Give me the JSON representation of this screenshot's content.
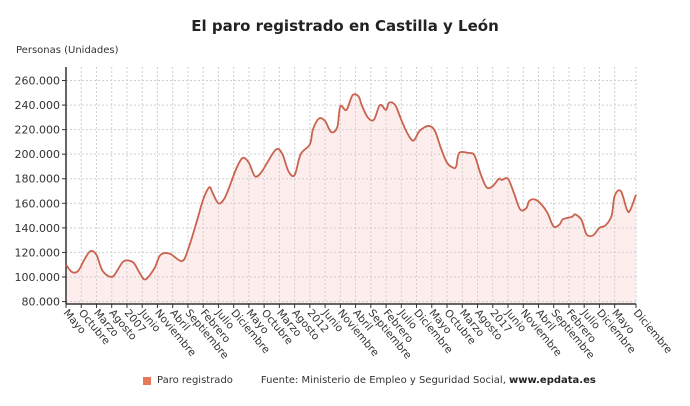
{
  "chart_data": {
    "type": "area",
    "title": "El paro registrado en Castilla y León",
    "ylabel": "Personas (Unidades)",
    "xlabel": "",
    "ylim": [
      78000,
      271000
    ],
    "y_ticks": [
      80000,
      100000,
      120000,
      140000,
      160000,
      180000,
      200000,
      220000,
      240000,
      260000
    ],
    "y_tick_labels": [
      "80.000",
      "100.000",
      "120.000",
      "140.000",
      "160.000",
      "180.000",
      "200.000",
      "220.000",
      "240.000",
      "260.000"
    ],
    "x_ticks": [
      {
        "date": "2005-05",
        "label": "Mayo"
      },
      {
        "date": "2005-10",
        "label": "Octubre"
      },
      {
        "date": "2006-03",
        "label": "Marzo"
      },
      {
        "date": "2006-08",
        "label": "Agosto"
      },
      {
        "date": "2007-01",
        "label": "2007"
      },
      {
        "date": "2007-06",
        "label": "Junio"
      },
      {
        "date": "2007-11",
        "label": "Noviembre"
      },
      {
        "date": "2008-04",
        "label": "Abril"
      },
      {
        "date": "2008-09",
        "label": "Septiembre"
      },
      {
        "date": "2009-02",
        "label": "Febrero"
      },
      {
        "date": "2009-07",
        "label": "Julio"
      },
      {
        "date": "2009-12",
        "label": "Diciembre"
      },
      {
        "date": "2010-05",
        "label": "Mayo"
      },
      {
        "date": "2010-10",
        "label": "Octubre"
      },
      {
        "date": "2011-03",
        "label": "Marzo"
      },
      {
        "date": "2011-08",
        "label": "Agosto"
      },
      {
        "date": "2012-01",
        "label": "2012"
      },
      {
        "date": "2012-06",
        "label": "Junio"
      },
      {
        "date": "2012-11",
        "label": "Noviembre"
      },
      {
        "date": "2013-04",
        "label": "Abril"
      },
      {
        "date": "2013-09",
        "label": "Septiembre"
      },
      {
        "date": "2014-02",
        "label": "Febrero"
      },
      {
        "date": "2014-07",
        "label": "Julio"
      },
      {
        "date": "2014-12",
        "label": "Diciembre"
      },
      {
        "date": "2015-05",
        "label": "Mayo"
      },
      {
        "date": "2015-10",
        "label": "Octubre"
      },
      {
        "date": "2016-03",
        "label": "Marzo"
      },
      {
        "date": "2016-08",
        "label": "Agosto"
      },
      {
        "date": "2017-01",
        "label": "2017"
      },
      {
        "date": "2017-06",
        "label": "Junio"
      },
      {
        "date": "2017-11",
        "label": "Noviembre"
      },
      {
        "date": "2018-04",
        "label": "Abril"
      },
      {
        "date": "2018-09",
        "label": "Septiembre"
      },
      {
        "date": "2019-02",
        "label": "Febrero"
      },
      {
        "date": "2019-07",
        "label": "Julio"
      },
      {
        "date": "2019-12",
        "label": "Diciembre"
      },
      {
        "date": "2020-05",
        "label": "Mayo"
      },
      {
        "date": "2020-12",
        "label": "Diciembre"
      }
    ],
    "grid": true,
    "legend_position": "bottom",
    "series": [
      {
        "name": "Paro registrado",
        "color": "#c9634f",
        "fill": "#fdeeed",
        "points": [
          [
            "2005-05",
            110000
          ],
          [
            "2005-07",
            104000
          ],
          [
            "2005-09",
            105000
          ],
          [
            "2005-11",
            114000
          ],
          [
            "2006-01",
            121000
          ],
          [
            "2006-03",
            118000
          ],
          [
            "2006-05",
            105000
          ],
          [
            "2006-08",
            100000
          ],
          [
            "2006-10",
            106000
          ],
          [
            "2006-12",
            113000
          ],
          [
            "2007-03",
            112000
          ],
          [
            "2007-05",
            104000
          ],
          [
            "2007-07",
            98000
          ],
          [
            "2007-10",
            107000
          ],
          [
            "2007-12",
            118000
          ],
          [
            "2008-03",
            119000
          ],
          [
            "2008-07",
            113000
          ],
          [
            "2008-09",
            122000
          ],
          [
            "2008-12",
            146000
          ],
          [
            "2009-02",
            163000
          ],
          [
            "2009-04",
            173000
          ],
          [
            "2009-05",
            169000
          ],
          [
            "2009-07",
            160000
          ],
          [
            "2009-09",
            164000
          ],
          [
            "2009-11",
            176000
          ],
          [
            "2010-01",
            189000
          ],
          [
            "2010-03",
            197000
          ],
          [
            "2010-05",
            193000
          ],
          [
            "2010-07",
            182000
          ],
          [
            "2010-09",
            185000
          ],
          [
            "2010-11",
            193000
          ],
          [
            "2011-02",
            204000
          ],
          [
            "2011-04",
            200000
          ],
          [
            "2011-06",
            186000
          ],
          [
            "2011-08",
            183000
          ],
          [
            "2011-10",
            200000
          ],
          [
            "2012-01",
            208000
          ],
          [
            "2012-02",
            220000
          ],
          [
            "2012-04",
            229000
          ],
          [
            "2012-06",
            227000
          ],
          [
            "2012-08",
            218000
          ],
          [
            "2012-10",
            222000
          ],
          [
            "2012-11",
            239000
          ],
          [
            "2013-01",
            236000
          ],
          [
            "2013-03",
            248000
          ],
          [
            "2013-05",
            247000
          ],
          [
            "2013-06",
            240000
          ],
          [
            "2013-08",
            230000
          ],
          [
            "2013-10",
            228000
          ],
          [
            "2013-12",
            240000
          ],
          [
            "2014-02",
            236000
          ],
          [
            "2014-03",
            242000
          ],
          [
            "2014-05",
            240000
          ],
          [
            "2014-07",
            228000
          ],
          [
            "2014-09",
            217000
          ],
          [
            "2014-11",
            211000
          ],
          [
            "2015-01",
            219000
          ],
          [
            "2015-04",
            223000
          ],
          [
            "2015-06",
            219000
          ],
          [
            "2015-08",
            205000
          ],
          [
            "2015-10",
            193000
          ],
          [
            "2015-12",
            189000
          ],
          [
            "2016-01",
            190000
          ],
          [
            "2016-02",
            201000
          ],
          [
            "2016-05",
            201000
          ],
          [
            "2016-07",
            199000
          ],
          [
            "2016-09",
            184000
          ],
          [
            "2016-11",
            173000
          ],
          [
            "2017-01",
            174000
          ],
          [
            "2017-03",
            180000
          ],
          [
            "2017-04",
            179000
          ],
          [
            "2017-06",
            180000
          ],
          [
            "2017-08",
            168000
          ],
          [
            "2017-10",
            155000
          ],
          [
            "2017-12",
            156000
          ],
          [
            "2018-01",
            162000
          ],
          [
            "2018-03",
            163000
          ],
          [
            "2018-05",
            159000
          ],
          [
            "2018-07",
            152000
          ],
          [
            "2018-09",
            141000
          ],
          [
            "2018-11",
            143000
          ],
          [
            "2018-12",
            147000
          ],
          [
            "2019-03",
            149000
          ],
          [
            "2019-04",
            151000
          ],
          [
            "2019-06",
            147000
          ],
          [
            "2019-07",
            140000
          ],
          [
            "2019-08",
            134000
          ],
          [
            "2019-10",
            134000
          ],
          [
            "2019-12",
            140000
          ],
          [
            "2020-02",
            142000
          ],
          [
            "2020-04",
            150000
          ],
          [
            "2020-05",
            166000
          ],
          [
            "2020-07",
            170000
          ],
          [
            "2020-09",
            155000
          ],
          [
            "2020-10",
            154000
          ],
          [
            "2020-12",
            167000
          ]
        ]
      }
    ],
    "source_prefix": "Fuente: Ministerio de Empleo y Seguridad Social, ",
    "source_site": "www.epdata.es"
  }
}
